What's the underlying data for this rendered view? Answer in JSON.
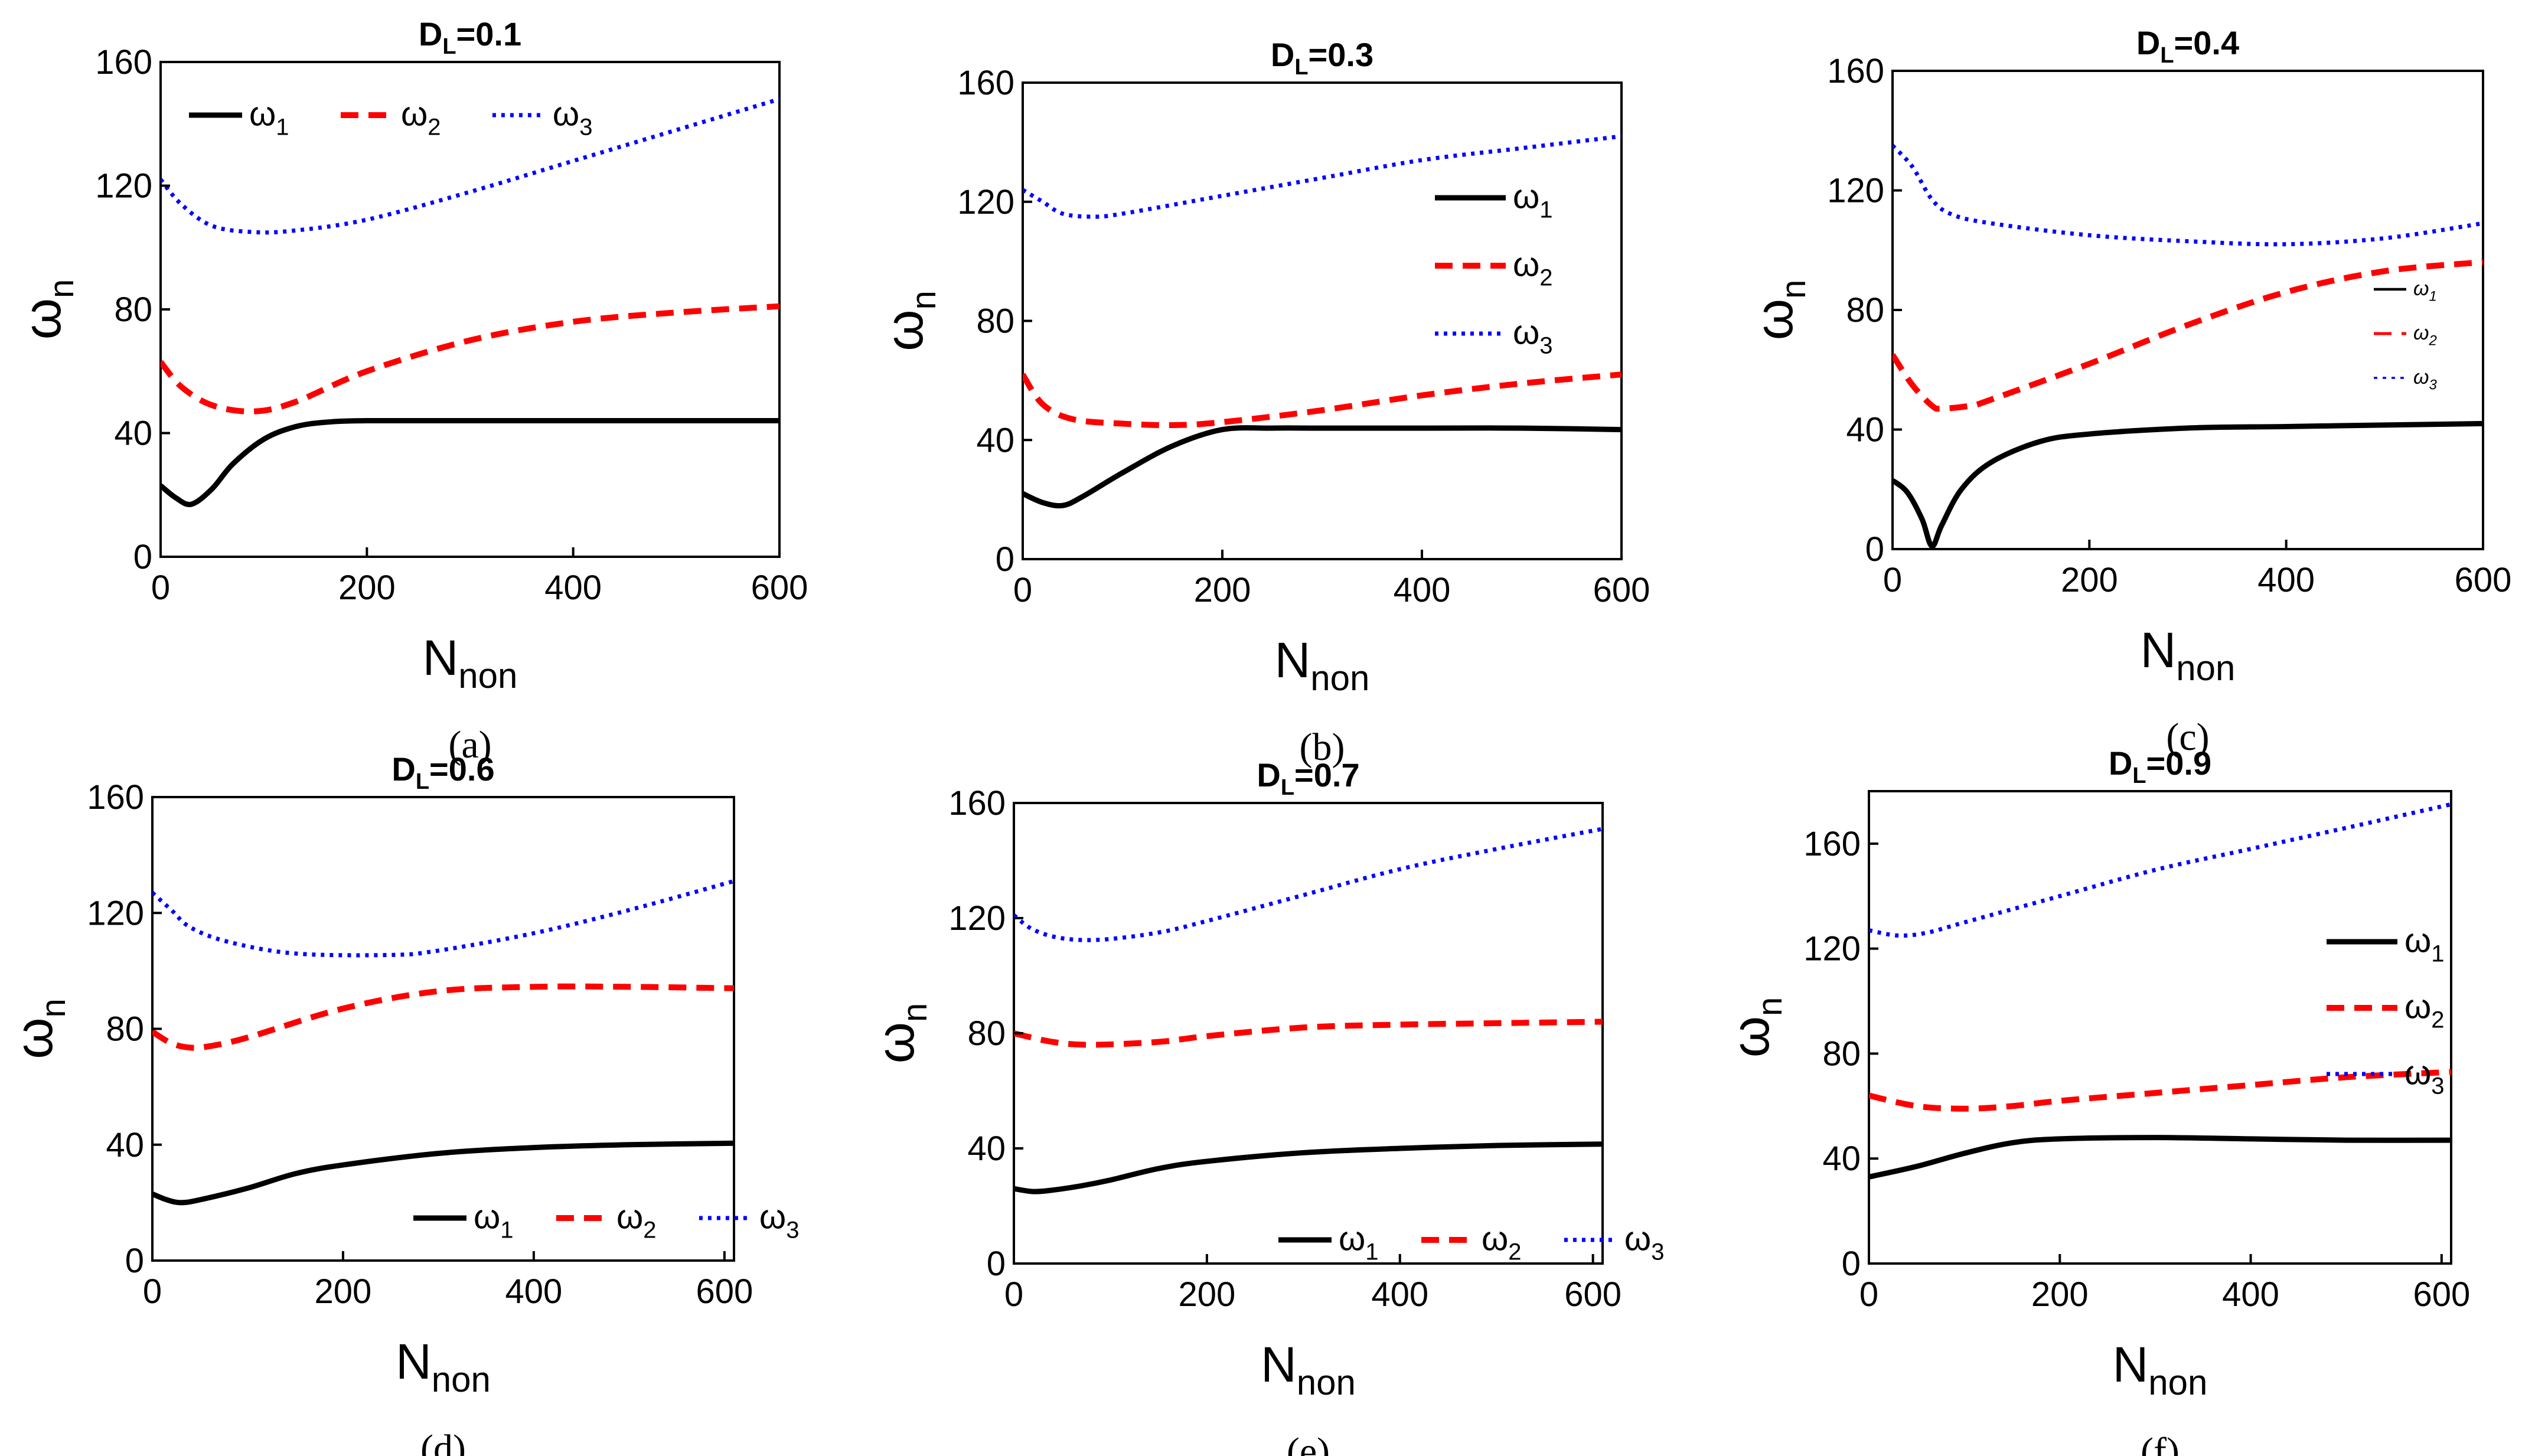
{
  "chart_data": [
    {
      "panel": "(a)",
      "type": "line",
      "title": "D_L=0.1",
      "title_main": "D",
      "title_sub": "L",
      "title_rest": "=0.1",
      "ylabel_main": "ω",
      "ylabel_sub": "n",
      "xlabel_main": "N",
      "xlabel_sub": "non",
      "xlim": [
        0,
        600
      ],
      "ylim": [
        0,
        160
      ],
      "xticks": [
        0,
        200,
        400,
        600
      ],
      "yticks": [
        0,
        40,
        80,
        120,
        160
      ],
      "legend_placement": "top-left",
      "series": [
        {
          "name": "ω1",
          "color": "#000000",
          "style": "solid",
          "x": [
            0,
            15,
            30,
            50,
            70,
            100,
            130,
            160,
            200,
            300,
            400,
            500,
            600
          ],
          "y": [
            23,
            19,
            17,
            22,
            30,
            38,
            42,
            43.5,
            44,
            44,
            44,
            44,
            44
          ]
        },
        {
          "name": "ω2",
          "color": "#ff0000",
          "style": "dashed",
          "x": [
            0,
            20,
            50,
            90,
            130,
            200,
            300,
            400,
            500,
            600
          ],
          "y": [
            63,
            55,
            49,
            47,
            50,
            60,
            70,
            76,
            79,
            81
          ]
        },
        {
          "name": "ω3",
          "color": "#0000ff",
          "style": "dotted",
          "x": [
            0,
            20,
            50,
            90,
            130,
            200,
            300,
            400,
            500,
            600
          ],
          "y": [
            122,
            114,
            107,
            105,
            105.5,
            109,
            118,
            128,
            138,
            148
          ]
        }
      ]
    },
    {
      "panel": "(b)",
      "type": "line",
      "title": "D_L=0.3",
      "title_main": "D",
      "title_sub": "L",
      "title_rest": "=0.3",
      "ylabel_main": "ω",
      "ylabel_sub": "n",
      "xlabel_main": "N",
      "xlabel_sub": "non",
      "xlim": [
        0,
        600
      ],
      "ylim": [
        0,
        160
      ],
      "xticks": [
        0,
        200,
        400,
        600
      ],
      "yticks": [
        0,
        40,
        80,
        120,
        160
      ],
      "legend_placement": "right",
      "series": [
        {
          "name": "ω1",
          "color": "#000000",
          "style": "solid",
          "x": [
            0,
            20,
            40,
            60,
            100,
            150,
            200,
            250,
            300,
            400,
            500,
            600
          ],
          "y": [
            22,
            19,
            18,
            21,
            29,
            38,
            43.5,
            44,
            44,
            44,
            44,
            43.5
          ]
        },
        {
          "name": "ω2",
          "color": "#ff0000",
          "style": "dashed",
          "x": [
            0,
            20,
            50,
            100,
            150,
            200,
            300,
            400,
            500,
            600
          ],
          "y": [
            62,
            52,
            47,
            45.5,
            45,
            46,
            50,
            55,
            59,
            62
          ]
        },
        {
          "name": "ω3",
          "color": "#0000ff",
          "style": "dotted",
          "x": [
            0,
            20,
            40,
            70,
            100,
            200,
            300,
            400,
            500,
            600
          ],
          "y": [
            124,
            120,
            116,
            115,
            116,
            122,
            128,
            134,
            138,
            142
          ]
        }
      ]
    },
    {
      "panel": "(c)",
      "type": "line",
      "title": "D_L=0.4",
      "title_main": "D",
      "title_sub": "L",
      "title_rest": "=0.4",
      "ylabel_main": "ω",
      "ylabel_sub": "n",
      "xlabel_main": "N",
      "xlabel_sub": "non",
      "xlim": [
        0,
        600
      ],
      "ylim": [
        0,
        160
      ],
      "xticks": [
        0,
        200,
        400,
        600
      ],
      "yticks": [
        0,
        40,
        80,
        120,
        160
      ],
      "legend_placement": "right",
      "series": [
        {
          "name": "ω1",
          "color": "#000000",
          "style": "solid",
          "x": [
            0,
            15,
            30,
            40,
            50,
            70,
            100,
            150,
            200,
            300,
            400,
            500,
            600
          ],
          "y": [
            23,
            19,
            10,
            1,
            8,
            20,
            29,
            36,
            38.5,
            40.5,
            41,
            41.5,
            42
          ]
        },
        {
          "name": "ω2",
          "color": "#ff0000",
          "style": "dashed",
          "x": [
            0,
            20,
            40,
            50,
            80,
            100,
            200,
            300,
            400,
            500,
            600
          ],
          "y": [
            65,
            55,
            48,
            47,
            48,
            50,
            62,
            75,
            86,
            93,
            96
          ]
        },
        {
          "name": "ω3",
          "color": "#0000ff",
          "style": "dotted",
          "x": [
            0,
            20,
            40,
            60,
            100,
            200,
            300,
            400,
            500,
            600
          ],
          "y": [
            135,
            128,
            117,
            112,
            109,
            105,
            103,
            102,
            104,
            109
          ]
        }
      ]
    },
    {
      "panel": "(d)",
      "type": "line",
      "title": "D_L=0.6",
      "title_main": "D",
      "title_sub": "L",
      "title_rest": "=0.6",
      "ylabel_main": "ω",
      "ylabel_sub": "n",
      "xlabel_main": "N",
      "xlabel_sub": "non",
      "xlim": [
        0,
        610
      ],
      "ylim": [
        0,
        160
      ],
      "xticks": [
        0,
        200,
        400,
        600
      ],
      "yticks": [
        0,
        40,
        80,
        120,
        160
      ],
      "legend_placement": "bottom-right",
      "series": [
        {
          "name": "ω1",
          "color": "#000000",
          "style": "solid",
          "x": [
            0,
            15,
            30,
            50,
            100,
            150,
            200,
            300,
            400,
            500,
            610
          ],
          "y": [
            23,
            21,
            20,
            21,
            25,
            30,
            33,
            37,
            39,
            40,
            40.5
          ]
        },
        {
          "name": "ω2",
          "color": "#ff0000",
          "style": "dashed",
          "x": [
            0,
            20,
            40,
            60,
            100,
            200,
            300,
            400,
            500,
            610
          ],
          "y": [
            79,
            75,
            73.5,
            74,
            77,
            87,
            93,
            94.5,
            94.5,
            94
          ]
        },
        {
          "name": "ω3",
          "color": "#0000ff",
          "style": "dotted",
          "x": [
            0,
            20,
            40,
            80,
            150,
            250,
            300,
            400,
            500,
            610
          ],
          "y": [
            127,
            121,
            115,
            110,
            106,
            105.5,
            107,
            113,
            121,
            131
          ]
        }
      ]
    },
    {
      "panel": "(e)",
      "type": "line",
      "title": "D_L=0.7",
      "title_main": "D",
      "title_sub": "L",
      "title_rest": "=0.7",
      "ylabel_main": "ω",
      "ylabel_sub": "n",
      "xlabel_main": "N",
      "xlabel_sub": "non",
      "xlim": [
        0,
        610
      ],
      "ylim": [
        0,
        160
      ],
      "xticks": [
        0,
        200,
        400,
        600
      ],
      "yticks": [
        0,
        40,
        80,
        120,
        160
      ],
      "legend_placement": "bottom-right",
      "series": [
        {
          "name": "ω1",
          "color": "#000000",
          "style": "solid",
          "x": [
            0,
            20,
            40,
            70,
            100,
            150,
            200,
            300,
            400,
            500,
            610
          ],
          "y": [
            26,
            25,
            25.5,
            27,
            29,
            33,
            35.5,
            38.5,
            40,
            41,
            41.5
          ]
        },
        {
          "name": "ω2",
          "color": "#ff0000",
          "style": "dashed",
          "x": [
            0,
            40,
            80,
            150,
            200,
            300,
            400,
            500,
            610
          ],
          "y": [
            80,
            77,
            76,
            77,
            79,
            82,
            83,
            83.5,
            84
          ]
        },
        {
          "name": "ω3",
          "color": "#0000ff",
          "style": "dotted",
          "x": [
            0,
            20,
            50,
            90,
            150,
            200,
            300,
            400,
            500,
            610
          ],
          "y": [
            121,
            116,
            113,
            112.5,
            115,
            119,
            128,
            137,
            144,
            151
          ]
        }
      ]
    },
    {
      "panel": "(f)",
      "type": "line",
      "title": "D_L=0.9",
      "title_main": "D",
      "title_sub": "L",
      "title_rest": "=0.9",
      "ylabel_main": "ω",
      "ylabel_sub": "n",
      "xlabel_main": "N",
      "xlabel_sub": "non",
      "xlim": [
        0,
        610
      ],
      "ylim": [
        0,
        180
      ],
      "xticks": [
        0,
        200,
        400,
        600
      ],
      "yticks": [
        0,
        40,
        80,
        120,
        160
      ],
      "legend_placement": "right",
      "series": [
        {
          "name": "ω1",
          "color": "#000000",
          "style": "solid",
          "x": [
            0,
            50,
            100,
            150,
            200,
            300,
            400,
            500,
            610
          ],
          "y": [
            33,
            37,
            42,
            46,
            47.5,
            48,
            47.5,
            47,
            47
          ]
        },
        {
          "name": "ω2",
          "color": "#ff0000",
          "style": "dashed",
          "x": [
            0,
            50,
            100,
            150,
            200,
            300,
            400,
            500,
            610
          ],
          "y": [
            64,
            60,
            59,
            60,
            62,
            65,
            68,
            71,
            73
          ]
        },
        {
          "name": "ω3",
          "color": "#0000ff",
          "style": "dotted",
          "x": [
            0,
            30,
            60,
            100,
            200,
            300,
            400,
            500,
            610
          ],
          "y": [
            127,
            125,
            126,
            130,
            140,
            150,
            158,
            166,
            175
          ]
        }
      ]
    }
  ]
}
